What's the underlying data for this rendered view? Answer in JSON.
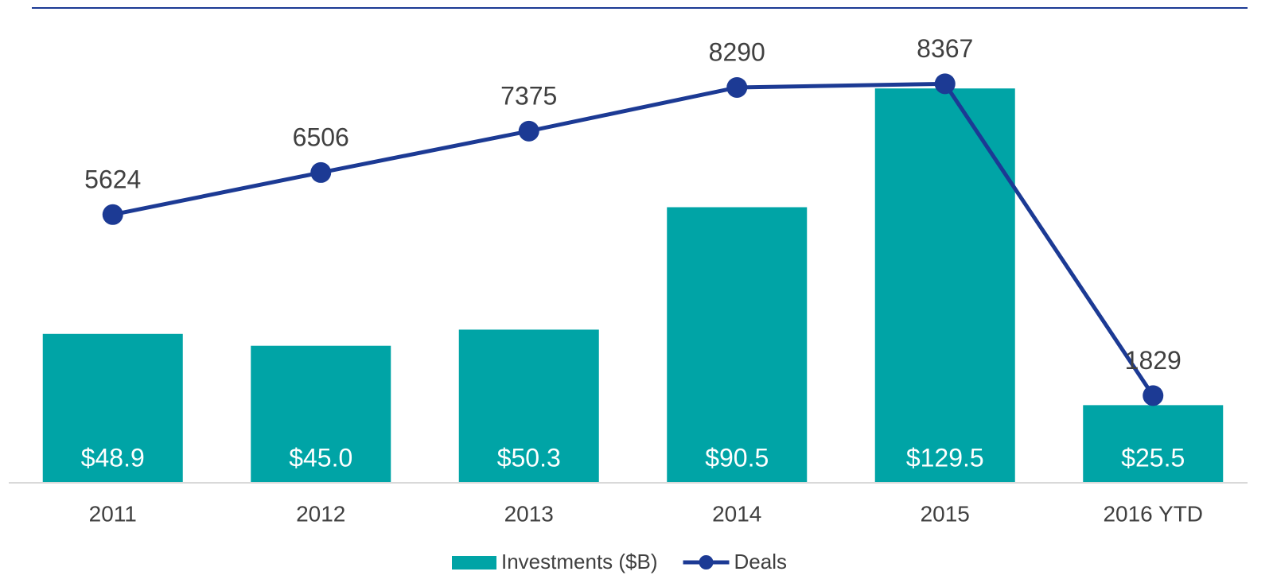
{
  "chart_data": {
    "type": "combo",
    "categories": [
      "2011",
      "2012",
      "2013",
      "2014",
      "2015",
      "2016 YTD"
    ],
    "series": [
      {
        "name": "Investments ($B)",
        "type": "bar",
        "color": "#00a4a6",
        "values": [
          48.9,
          45.0,
          50.3,
          90.5,
          129.5,
          25.5
        ],
        "value_labels": [
          "$48.9",
          "$45.0",
          "$50.3",
          "$90.5",
          "$129.5",
          "$25.5"
        ]
      },
      {
        "name": "Deals",
        "type": "line",
        "axis": "y2",
        "color": "#1c3a94",
        "values": [
          5624,
          6506,
          7375,
          8290,
          8367,
          1829
        ]
      }
    ],
    "ylim": [
      0,
      140
    ],
    "y2lim": [
      0,
      8940
    ],
    "legend": "bottom"
  }
}
